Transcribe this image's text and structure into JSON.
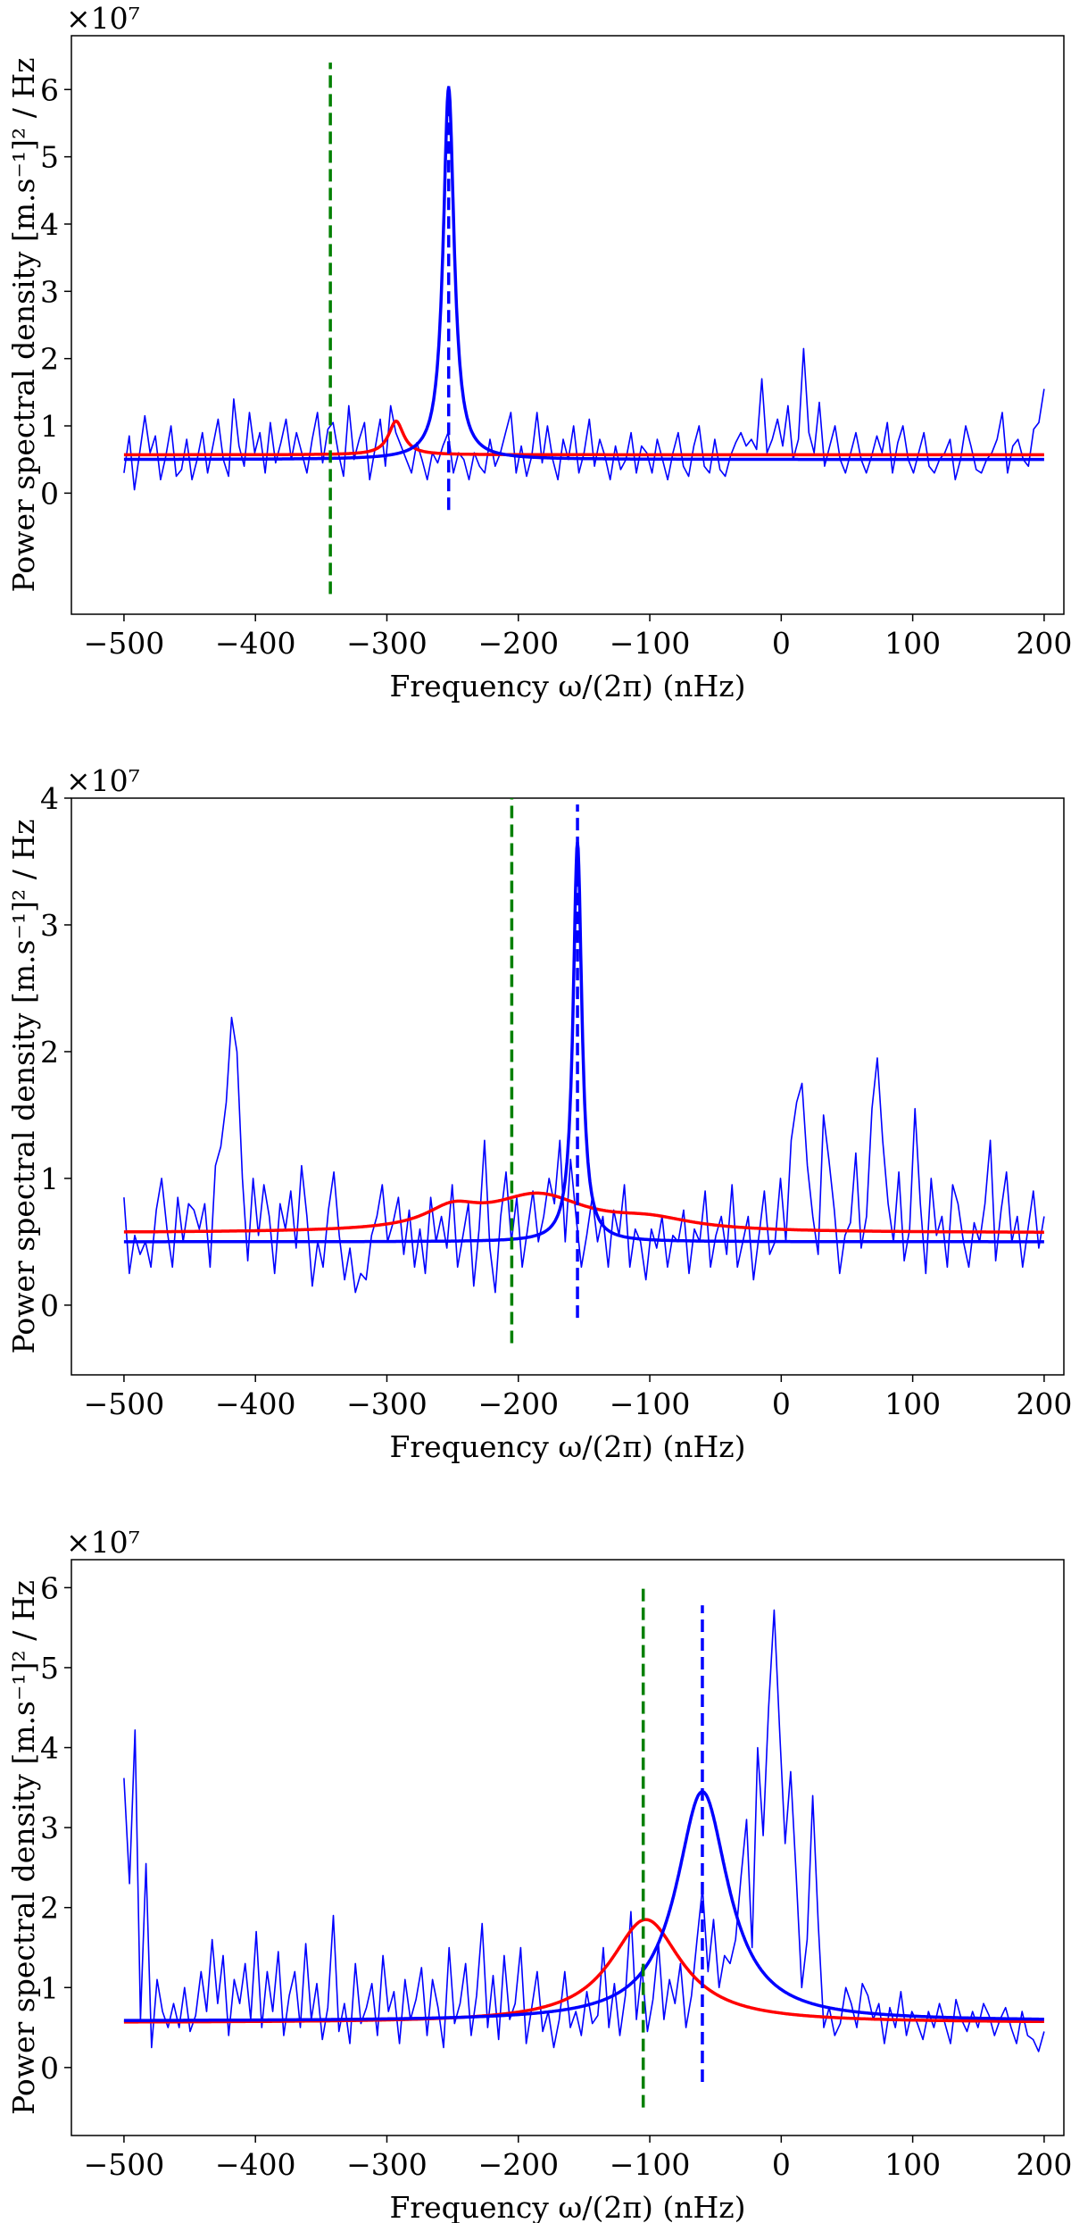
{
  "colors": {
    "data": "#0000ff",
    "fit_blue": "#0000ff",
    "fit_red": "#ff0000",
    "marker_green": "#008000",
    "marker_blue": "#0000ff"
  },
  "chart_data": [
    {
      "type": "line",
      "xlabel": "Frequency ω/(2π) (nHz)",
      "ylabel": "Power spectral density [m.s⁻¹]² / Hz",
      "multiplier": "×10⁷",
      "xlim": [
        -540,
        215
      ],
      "ylim": [
        -1.8,
        6.8
      ],
      "xticks": [
        -500,
        -400,
        -300,
        -200,
        -100,
        0,
        100,
        200
      ],
      "xtick_labels": [
        "−500",
        "−400",
        "−300",
        "−200",
        "−100",
        "0",
        "100",
        "200"
      ],
      "yticks": [
        0,
        1,
        2,
        3,
        4,
        5,
        6
      ],
      "ytick_labels": [
        "0",
        "1",
        "2",
        "3",
        "4",
        "5",
        "6"
      ],
      "series": [
        {
          "name": "observed spectrum",
          "kind": "noisy",
          "values": [
            0.3,
            0.85,
            0.05,
            0.6,
            1.15,
            0.6,
            0.85,
            0.2,
            0.55,
            1.0,
            0.25,
            0.35,
            0.8,
            0.2,
            0.5,
            0.9,
            0.3,
            0.7,
            1.1,
            0.5,
            0.25,
            1.4,
            0.7,
            0.4,
            1.2,
            0.6,
            0.9,
            0.3,
            1.05,
            0.45,
            0.75,
            1.1,
            0.5,
            0.9,
            0.6,
            0.3,
            0.8,
            1.2,
            0.45,
            0.95,
            1.05,
            0.6,
            0.25,
            1.3,
            0.5,
            0.8,
            1.05,
            0.2,
            0.65,
            1.1,
            0.4,
            1.3,
            0.9,
            0.7,
            0.5,
            0.3,
            0.75,
            0.5,
            0.2,
            0.6,
            0.45,
            0.7,
            0.9,
            0.3,
            0.6,
            0.5,
            0.2,
            0.6,
            0.4,
            0.3,
            0.8,
            0.4,
            0.6,
            0.9,
            1.2,
            0.3,
            0.7,
            0.25,
            0.55,
            1.2,
            0.45,
            1.0,
            0.5,
            0.2,
            0.8,
            0.5,
            1.0,
            0.3,
            0.6,
            1.1,
            0.4,
            0.8,
            0.55,
            0.2,
            0.7,
            0.35,
            0.5,
            0.9,
            0.3,
            0.7,
            0.6,
            0.3,
            0.8,
            0.5,
            0.2,
            0.6,
            0.9,
            0.4,
            0.25,
            0.7,
            1.0,
            0.4,
            0.3,
            0.8,
            0.35,
            0.25,
            0.55,
            0.75,
            0.9,
            0.7,
            0.8,
            0.65,
            1.7,
            0.6,
            0.8,
            1.1,
            0.7,
            1.3,
            0.5,
            0.8,
            2.15,
            0.9,
            0.6,
            1.35,
            0.4,
            0.7,
            1.0,
            0.5,
            0.3,
            0.6,
            0.9,
            0.5,
            0.3,
            0.55,
            0.85,
            0.6,
            1.05,
            0.3,
            0.75,
            1.0,
            0.5,
            0.3,
            0.6,
            0.9,
            0.4,
            0.3,
            0.5,
            0.6,
            0.8,
            0.2,
            0.5,
            1.0,
            0.7,
            0.35,
            0.3,
            0.5,
            0.6,
            0.8,
            1.2,
            0.3,
            0.7,
            0.8,
            0.5,
            0.4,
            0.95,
            1.05,
            1.55
          ]
        },
        {
          "name": "blue fit",
          "kind": "lorentz",
          "base": 0.5,
          "amp": 5.53,
          "center": -253,
          "hwhm": 5
        },
        {
          "name": "red fit",
          "kind": "lorentz",
          "base": 0.57,
          "amp": 0.5,
          "center": -293,
          "hwhm": 7
        }
      ],
      "markers": [
        {
          "name": "green marker",
          "x": -343,
          "y_range": [
            -1.5,
            6.4
          ],
          "color": "green"
        },
        {
          "name": "blue marker",
          "x": -253,
          "y_range": [
            -0.25,
            6.05
          ],
          "color": "blue"
        }
      ]
    },
    {
      "type": "line",
      "xlabel": "Frequency ω/(2π) (nHz)",
      "ylabel": "Power spectral density [m.s⁻¹]² / Hz",
      "multiplier": "×10⁷",
      "xlim": [
        -540,
        215
      ],
      "ylim": [
        -0.55,
        4.0
      ],
      "xticks": [
        -500,
        -400,
        -300,
        -200,
        -100,
        0,
        100,
        200
      ],
      "xtick_labels": [
        "−500",
        "−400",
        "−300",
        "−200",
        "−100",
        "0",
        "100",
        "200"
      ],
      "yticks": [
        0,
        1,
        2,
        3,
        4
      ],
      "ytick_labels": [
        "0",
        "1",
        "2",
        "3",
        "4"
      ],
      "series": [
        {
          "name": "observed spectrum",
          "kind": "noisy",
          "values": [
            0.85,
            0.25,
            0.55,
            0.4,
            0.5,
            0.3,
            0.75,
            1.0,
            0.6,
            0.3,
            0.85,
            0.5,
            0.8,
            0.75,
            0.6,
            0.8,
            0.3,
            1.1,
            1.25,
            1.6,
            2.27,
            2.0,
            1.0,
            0.35,
            1.0,
            0.55,
            0.95,
            0.7,
            0.25,
            0.8,
            0.6,
            0.9,
            0.45,
            1.1,
            0.7,
            0.15,
            0.5,
            0.3,
            0.75,
            1.05,
            0.55,
            0.2,
            0.45,
            0.1,
            0.25,
            0.2,
            0.55,
            0.7,
            0.95,
            0.5,
            0.65,
            0.85,
            0.4,
            0.75,
            0.3,
            0.6,
            0.25,
            0.85,
            0.5,
            0.7,
            0.45,
            0.95,
            0.3,
            0.55,
            0.8,
            0.15,
            0.6,
            1.3,
            0.45,
            0.1,
            0.7,
            1.05,
            0.5,
            0.85,
            0.3,
            0.6,
            0.9,
            0.5,
            0.7,
            1.0,
            0.8,
            1.3,
            0.5,
            1.15,
            0.7,
            0.3,
            0.55,
            0.85,
            0.5,
            0.7,
            0.3,
            0.75,
            0.55,
            0.95,
            0.3,
            0.6,
            0.5,
            0.2,
            0.6,
            0.45,
            0.7,
            0.3,
            0.55,
            0.5,
            0.75,
            0.25,
            0.6,
            0.5,
            0.9,
            0.3,
            0.55,
            0.7,
            0.4,
            0.95,
            0.3,
            0.5,
            0.7,
            0.2,
            0.55,
            0.9,
            0.4,
            0.5,
            1.0,
            0.5,
            1.3,
            1.6,
            1.75,
            1.1,
            0.7,
            0.4,
            1.5,
            1.15,
            0.75,
            0.25,
            0.55,
            0.65,
            1.2,
            0.45,
            0.7,
            1.55,
            1.95,
            1.3,
            0.8,
            0.5,
            1.05,
            0.35,
            0.6,
            1.55,
            0.8,
            0.25,
            1.0,
            0.55,
            0.7,
            0.3,
            0.95,
            0.8,
            0.5,
            0.3,
            0.65,
            0.5,
            0.8,
            1.3,
            0.35,
            0.75,
            1.05,
            0.5,
            0.7,
            0.3,
            0.6,
            0.9,
            0.45,
            0.7
          ]
        },
        {
          "name": "blue fit",
          "kind": "lorentz",
          "base": 0.5,
          "amp": 3.15,
          "center": -155,
          "hwhm": 4
        },
        {
          "name": "red fit",
          "kind": "broad",
          "base": 0.57,
          "components": [
            {
              "amp": 0.28,
              "center": -185,
              "hwhm": 45
            },
            {
              "amp": 0.15,
              "center": -250,
              "hwhm": 25
            },
            {
              "amp": 0.08,
              "center": -100,
              "hwhm": 40
            }
          ]
        }
      ],
      "markers": [
        {
          "name": "green marker",
          "x": -205,
          "y_range": [
            -0.3,
            4.1
          ],
          "color": "green"
        },
        {
          "name": "blue marker",
          "x": -155,
          "y_range": [
            -0.1,
            3.95
          ],
          "color": "blue"
        }
      ]
    },
    {
      "type": "line",
      "xlabel": "Frequency ω/(2π) (nHz)",
      "ylabel": "Power spectral density [m.s⁻¹]² / Hz",
      "multiplier": "×10⁷",
      "xlim": [
        -540,
        215
      ],
      "ylim": [
        -0.85,
        6.35
      ],
      "xticks": [
        -500,
        -400,
        -300,
        -200,
        -100,
        0,
        100,
        200
      ],
      "xtick_labels": [
        "−500",
        "−400",
        "−300",
        "−200",
        "−100",
        "0",
        "100",
        "200"
      ],
      "yticks": [
        0,
        1,
        2,
        3,
        4,
        5,
        6
      ],
      "ytick_labels": [
        "0",
        "1",
        "2",
        "3",
        "4",
        "5",
        "6"
      ],
      "series": [
        {
          "name": "observed spectrum",
          "kind": "noisy",
          "values": [
            3.62,
            2.3,
            4.22,
            0.6,
            2.55,
            0.25,
            1.1,
            0.7,
            0.5,
            0.8,
            0.5,
            1.0,
            0.45,
            0.65,
            1.2,
            0.7,
            1.6,
            0.8,
            1.4,
            0.4,
            1.1,
            0.8,
            1.3,
            0.6,
            1.7,
            0.5,
            1.2,
            0.7,
            1.45,
            0.4,
            0.9,
            1.2,
            0.5,
            1.55,
            0.6,
            1.05,
            0.35,
            0.75,
            1.9,
            0.45,
            0.8,
            0.3,
            1.3,
            0.55,
            0.75,
            1.05,
            0.4,
            1.4,
            0.7,
            0.95,
            0.3,
            1.1,
            0.6,
            0.85,
            1.25,
            0.4,
            1.1,
            0.75,
            0.25,
            1.5,
            0.55,
            0.8,
            1.3,
            0.4,
            0.9,
            1.8,
            0.5,
            1.15,
            0.35,
            1.4,
            0.6,
            0.8,
            1.5,
            0.3,
            0.75,
            1.2,
            0.45,
            0.7,
            0.25,
            0.6,
            1.2,
            0.5,
            0.7,
            0.4,
            0.95,
            0.55,
            0.65,
            1.5,
            0.5,
            1.05,
            0.4,
            0.9,
            1.95,
            0.6,
            1.25,
            0.45,
            0.85,
            1.55,
            0.6,
            1.1,
            0.8,
            1.3,
            0.5,
            0.9,
            1.6,
            2.25,
            1.2,
            1.85,
            1.0,
            1.4,
            1.3,
            1.6,
            2.4,
            3.1,
            1.5,
            4.0,
            2.9,
            4.5,
            5.72,
            4.2,
            2.8,
            3.7,
            2.4,
            1.0,
            1.6,
            3.4,
            1.8,
            0.5,
            0.75,
            0.4,
            0.55,
            1.0,
            0.8,
            0.5,
            1.05,
            0.9,
            0.6,
            0.8,
            0.3,
            0.75,
            0.5,
            0.95,
            0.4,
            0.7,
            0.55,
            0.35,
            0.7,
            0.5,
            0.8,
            0.55,
            0.3,
            0.85,
            0.6,
            0.45,
            0.7,
            0.5,
            0.8,
            0.65,
            0.4,
            0.6,
            0.75,
            0.5,
            0.3,
            0.7,
            0.4,
            0.35,
            0.2,
            0.45
          ]
        },
        {
          "name": "blue fit",
          "kind": "lorentz",
          "base": 0.58,
          "amp": 2.87,
          "center": -60,
          "hwhm": 24
        },
        {
          "name": "red fit",
          "kind": "lorentz",
          "base": 0.56,
          "amp": 1.29,
          "center": -103,
          "hwhm": 33
        }
      ],
      "markers": [
        {
          "name": "green marker",
          "x": -105,
          "y_range": [
            -0.5,
            6.05
          ],
          "color": "green"
        },
        {
          "name": "blue marker",
          "x": -60,
          "y_range": [
            -0.18,
            5.78
          ],
          "color": "blue"
        }
      ]
    }
  ]
}
